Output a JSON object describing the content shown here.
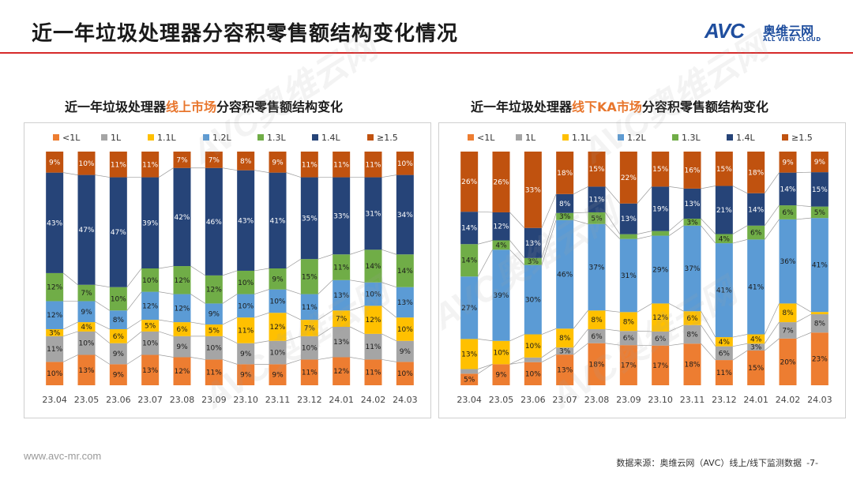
{
  "page": {
    "title": "近一年垃圾处理器分容积零售额结构变化情况",
    "footer_url": "www.avc-mr.com",
    "footer_source": "数据来源：奥维云网（AVC）线上/线下监测数据",
    "page_number": "-7-"
  },
  "logo": {
    "mark": "AVC",
    "cn": "奥维云网",
    "en": "ALL VIEW CLOUD"
  },
  "watermark": "AVC奥维云网",
  "colors": {
    "<1L": "#ed7d31",
    "1L": "#a5a5a5",
    "1.1L": "#ffc000",
    "1.2L": "#5b9bd5",
    "1.3L": "#70ad47",
    "1.4L": "#264478",
    "≥1.5": "#c0520f",
    "accent": "#d62a2a",
    "highlight": "#e8762d"
  },
  "chart_data": [
    {
      "type": "bar",
      "stacked": true,
      "normalized": true,
      "title_pre": "近一年垃圾处理器",
      "title_hl": "线上市场",
      "title_post": "分容积零售额结构变化",
      "legend_position": "top",
      "categories": [
        "23.04",
        "23.05",
        "23.06",
        "23.07",
        "23.08",
        "23.09",
        "23.10",
        "23.11",
        "23.12",
        "24.01",
        "24.02",
        "24.03"
      ],
      "series": [
        {
          "name": "<1L",
          "values": [
            10,
            13,
            9,
            13,
            12,
            11,
            9,
            9,
            11,
            12,
            11,
            10
          ]
        },
        {
          "name": "1L",
          "values": [
            11,
            10,
            9,
            10,
            9,
            10,
            9,
            10,
            10,
            13,
            11,
            9
          ]
        },
        {
          "name": "1.1L",
          "values": [
            3,
            4,
            6,
            5,
            6,
            5,
            11,
            12,
            7,
            7,
            12,
            10
          ]
        },
        {
          "name": "1.2L",
          "values": [
            12,
            9,
            8,
            12,
            12,
            9,
            10,
            10,
            11,
            13,
            10,
            13
          ]
        },
        {
          "name": "1.3L",
          "values": [
            12,
            7,
            10,
            10,
            12,
            12,
            10,
            9,
            15,
            11,
            14,
            14
          ]
        },
        {
          "name": "1.4L",
          "values": [
            43,
            47,
            47,
            39,
            42,
            46,
            43,
            41,
            35,
            33,
            31,
            34
          ]
        },
        {
          "name": "≥1.5",
          "values": [
            9,
            10,
            11,
            11,
            7,
            7,
            8,
            9,
            11,
            11,
            11,
            10
          ]
        }
      ]
    },
    {
      "type": "bar",
      "stacked": true,
      "normalized": true,
      "title_pre": "近一年垃圾处理器",
      "title_hl": "线下KA市场",
      "title_post": "分容积零售额结构变化",
      "legend_position": "top",
      "categories": [
        "23.04",
        "23.05",
        "23.06",
        "23.07",
        "23.08",
        "23.09",
        "23.10",
        "23.11",
        "23.12",
        "24.01",
        "24.02",
        "24.03"
      ],
      "series": [
        {
          "name": "<1L",
          "values": [
            5,
            9,
            10,
            13,
            18,
            17,
            17,
            18,
            11,
            15,
            20,
            23
          ]
        },
        {
          "name": "1L",
          "values": [
            2,
            0,
            2,
            3,
            6,
            6,
            6,
            8,
            6,
            3,
            7,
            8
          ]
        },
        {
          "name": "1.1L",
          "values": [
            13,
            10,
            10,
            8,
            8,
            8,
            12,
            6,
            4,
            4,
            8,
            1
          ]
        },
        {
          "name": "1.2L",
          "values": [
            27,
            39,
            30,
            46,
            37,
            31,
            29,
            37,
            41,
            41,
            36,
            41
          ]
        },
        {
          "name": "1.3L",
          "values": [
            14,
            4,
            3,
            3,
            5,
            2,
            2,
            3,
            4,
            6,
            6,
            5
          ]
        },
        {
          "name": "1.4L",
          "values": [
            14,
            12,
            13,
            8,
            11,
            13,
            19,
            13,
            21,
            14,
            14,
            15
          ]
        },
        {
          "name": "≥1.5",
          "values": [
            26,
            26,
            33,
            18,
            15,
            22,
            15,
            16,
            15,
            18,
            9,
            9
          ]
        }
      ]
    }
  ]
}
